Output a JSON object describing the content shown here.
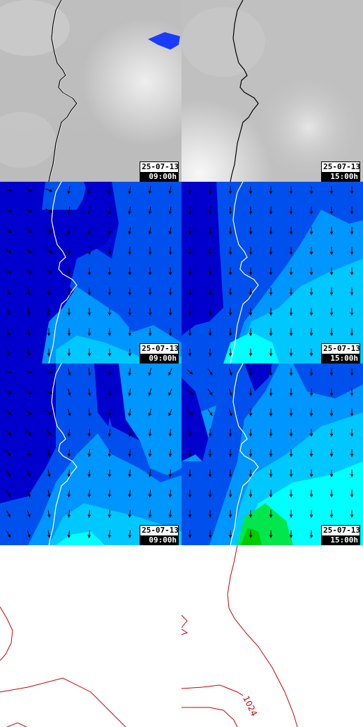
{
  "rows": [
    {
      "kind": "cloud",
      "panels": [
        {
          "date": "25-07-13",
          "time": "09:00h"
        },
        {
          "date": "25-07-13",
          "time": "15:00h"
        }
      ]
    },
    {
      "kind": "wind",
      "panels": [
        {
          "date": "25-07-13",
          "time": "09:00h"
        },
        {
          "date": "25-07-13",
          "time": "15:00h"
        }
      ]
    },
    {
      "kind": "wind",
      "panels": [
        {
          "date": "25-07-13",
          "time": "09:00h"
        },
        {
          "date": "25-07-13",
          "time": "15:00h"
        }
      ]
    },
    {
      "kind": "pressure",
      "panels": [
        {
          "contour_label": ""
        },
        {
          "contour_label": "1024"
        }
      ]
    }
  ],
  "colors": {
    "deep_blue": "#0000cc",
    "mid_blue": "#0050ee",
    "light_blue": "#0096ff",
    "sky": "#00c8ff",
    "cyan": "#00ffff",
    "green": "#00e64c",
    "isobar": "#cc0000",
    "cloud_patch": "#1a3cff"
  }
}
